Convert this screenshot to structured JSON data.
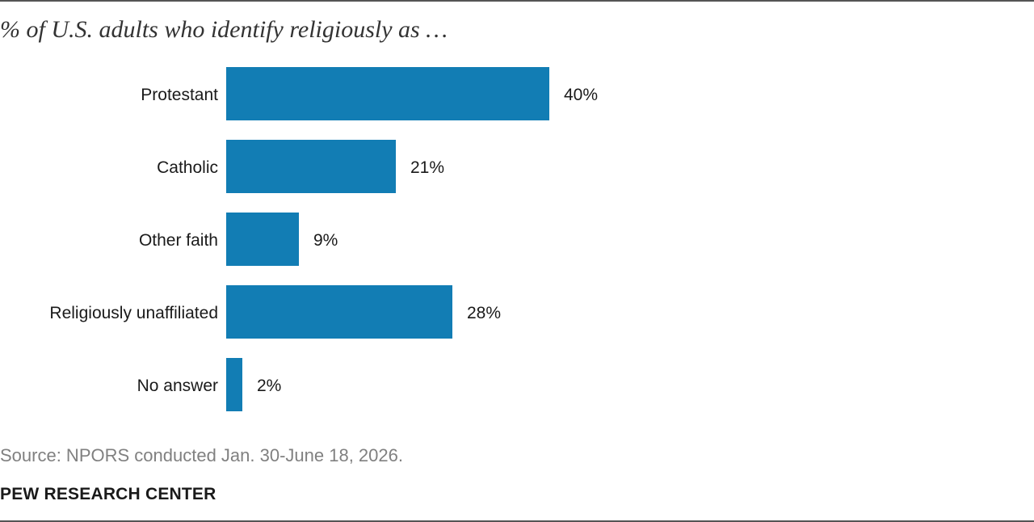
{
  "chart_data": {
    "type": "bar",
    "orientation": "horizontal",
    "title": "% of U.S. adults who identify religiously as …",
    "categories": [
      "Protestant",
      "Catholic",
      "Other faith",
      "Religiously unaffiliated",
      "No answer"
    ],
    "values": [
      40,
      21,
      9,
      28,
      2
    ],
    "value_labels": [
      "40%",
      "21%",
      "9%",
      "28%",
      "2%"
    ],
    "xlim": [
      0,
      100
    ],
    "grid": false,
    "bar_color": "#127DB4",
    "source": "Source: NPORS conducted Jan. 30-June 18, 2026."
  },
  "brand": "PEW RESEARCH CENTER"
}
